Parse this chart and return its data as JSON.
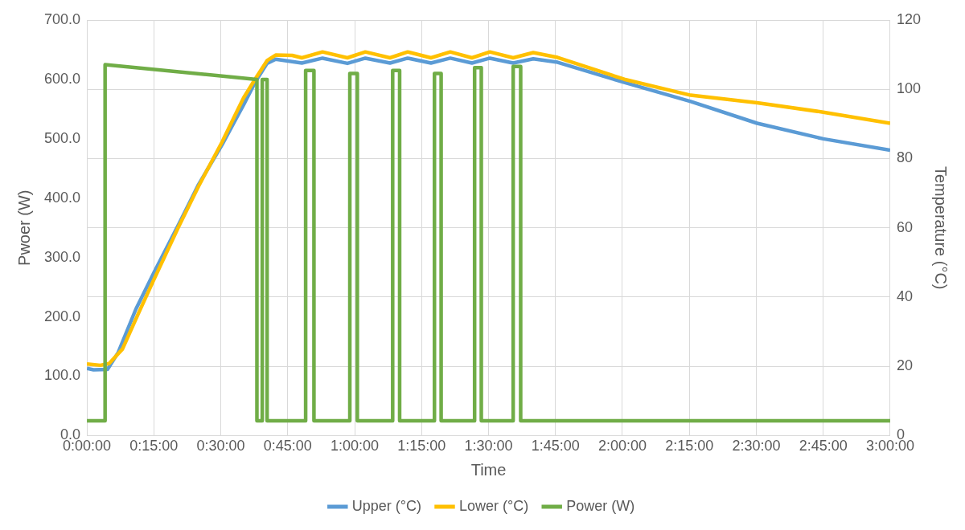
{
  "chart_data": {
    "type": "line",
    "xlabel": "Time",
    "ylabel": "Pwoer (W)",
    "y2label": "Temperature (°C)",
    "xlim": [
      0,
      3
    ],
    "xticks": [
      {
        "value": 0,
        "label": "0:00:00"
      },
      {
        "value": 0.25,
        "label": "0:15:00"
      },
      {
        "value": 0.5,
        "label": "0:30:00"
      },
      {
        "value": 0.75,
        "label": "0:45:00"
      },
      {
        "value": 1,
        "label": "1:00:00"
      },
      {
        "value": 1.25,
        "label": "1:15:00"
      },
      {
        "value": 1.5,
        "label": "1:30:00"
      },
      {
        "value": 1.75,
        "label": "1:45:00"
      },
      {
        "value": 2,
        "label": "2:00:00"
      },
      {
        "value": 2.25,
        "label": "2:15:00"
      },
      {
        "value": 2.5,
        "label": "2:30:00"
      },
      {
        "value": 2.75,
        "label": "2:45:00"
      },
      {
        "value": 3,
        "label": "3:00:00"
      }
    ],
    "ylim": [
      0,
      700
    ],
    "yticks": [
      {
        "value": 0,
        "label": "0.0"
      },
      {
        "value": 100,
        "label": "100.0"
      },
      {
        "value": 200,
        "label": "200.0"
      },
      {
        "value": 300,
        "label": "300.0"
      },
      {
        "value": 400,
        "label": "400.0"
      },
      {
        "value": 500,
        "label": "500.0"
      },
      {
        "value": 600,
        "label": "600.0"
      },
      {
        "value": 700,
        "label": "700.0"
      }
    ],
    "y2lim": [
      0,
      120
    ],
    "y2ticks": [
      0,
      20,
      40,
      60,
      80,
      100,
      120
    ],
    "grid": true,
    "legend": "bottom",
    "marker": "none",
    "line_style": "solid",
    "series": [
      {
        "name": "Upper (°C)",
        "color": "#5b9bd5",
        "axis": "y2",
        "x": [
          0,
          0.025,
          0.077,
          0.117,
          0.183,
          0.25,
          0.343,
          0.417,
          0.505,
          0.55,
          0.585,
          0.628,
          0.673,
          0.705,
          0.803,
          0.88,
          0.973,
          1.04,
          1.132,
          1.198,
          1.285,
          1.357,
          1.438,
          1.505,
          1.592,
          1.667,
          1.758,
          2.007,
          2.255,
          2.503,
          2.75,
          3
        ],
        "values": [
          19.4,
          19.0,
          19.1,
          24,
          36.5,
          47,
          61,
          72.5,
          84,
          90.5,
          95.5,
          102,
          107.5,
          108.7,
          107.6,
          109.0,
          107.5,
          109.0,
          107.6,
          109.0,
          107.6,
          109.0,
          107.6,
          109.0,
          107.6,
          108.8,
          107.8,
          102,
          96.5,
          90.2,
          85.7,
          82.4
        ]
      },
      {
        "name": "Lower (°C)",
        "color": "#ffc000",
        "axis": "y2",
        "x": [
          0,
          0.05,
          0.083,
          0.133,
          0.192,
          0.25,
          0.343,
          0.417,
          0.505,
          0.55,
          0.585,
          0.628,
          0.673,
          0.705,
          0.767,
          0.803,
          0.88,
          0.973,
          1.04,
          1.132,
          1.198,
          1.285,
          1.357,
          1.438,
          1.505,
          1.592,
          1.667,
          1.758,
          2.007,
          2.255,
          2.503,
          2.75,
          3
        ],
        "values": [
          20.7,
          20.3,
          20.8,
          25,
          35.2,
          45,
          60.4,
          72,
          84.8,
          92,
          97.5,
          102.9,
          108.3,
          109.9,
          109.8,
          109.1,
          110.8,
          109.1,
          110.8,
          109.1,
          110.8,
          109.1,
          110.8,
          109.1,
          110.8,
          109.1,
          110.6,
          109.2,
          102.9,
          98.3,
          96.1,
          93.4,
          90.2
        ]
      },
      {
        "name": "Power (W)",
        "color": "#70ad47",
        "x": [
          0,
          0.068,
          0.068,
          0.635,
          0.635,
          0.655,
          0.655,
          0.673,
          0.673,
          0.817,
          0.817,
          0.848,
          0.848,
          0.982,
          0.982,
          1.01,
          1.01,
          1.142,
          1.142,
          1.168,
          1.168,
          1.298,
          1.298,
          1.323,
          1.323,
          1.448,
          1.448,
          1.473,
          1.473,
          1.592,
          1.592,
          1.62,
          1.62,
          3
        ],
        "values": [
          25,
          25,
          625,
          600,
          25,
          25,
          600,
          600,
          25,
          25,
          615,
          615,
          25,
          25,
          610,
          610,
          25,
          25,
          615,
          615,
          25,
          25,
          610,
          610,
          25,
          25,
          620,
          620,
          25,
          25,
          622,
          622,
          25,
          25
        ]
      }
    ]
  }
}
